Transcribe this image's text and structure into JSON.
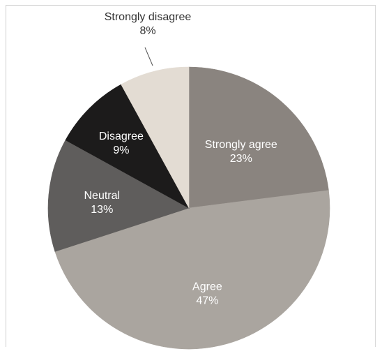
{
  "chart_data": {
    "type": "pie",
    "title": "",
    "start_angle_deg": 0,
    "direction": "clockwise",
    "slices": [
      {
        "label": "Strongly agree",
        "percent_label": "23%",
        "value": 23,
        "color": "#8a847f",
        "text_color": "#ffffff"
      },
      {
        "label": "Agree",
        "percent_label": "47%",
        "value": 47,
        "color": "#aaa59f",
        "text_color": "#ffffff"
      },
      {
        "label": "Neutral",
        "percent_label": "13%",
        "value": 13,
        "color": "#5f5d5c",
        "text_color": "#ffffff"
      },
      {
        "label": "Disagree",
        "percent_label": "9%",
        "value": 9,
        "color": "#1c1b1b",
        "text_color": "#ffffff"
      },
      {
        "label": "Strongly disagree",
        "percent_label": "8%",
        "value": 8,
        "color": "#e3dcd3",
        "text_color": "#333333"
      }
    ]
  }
}
